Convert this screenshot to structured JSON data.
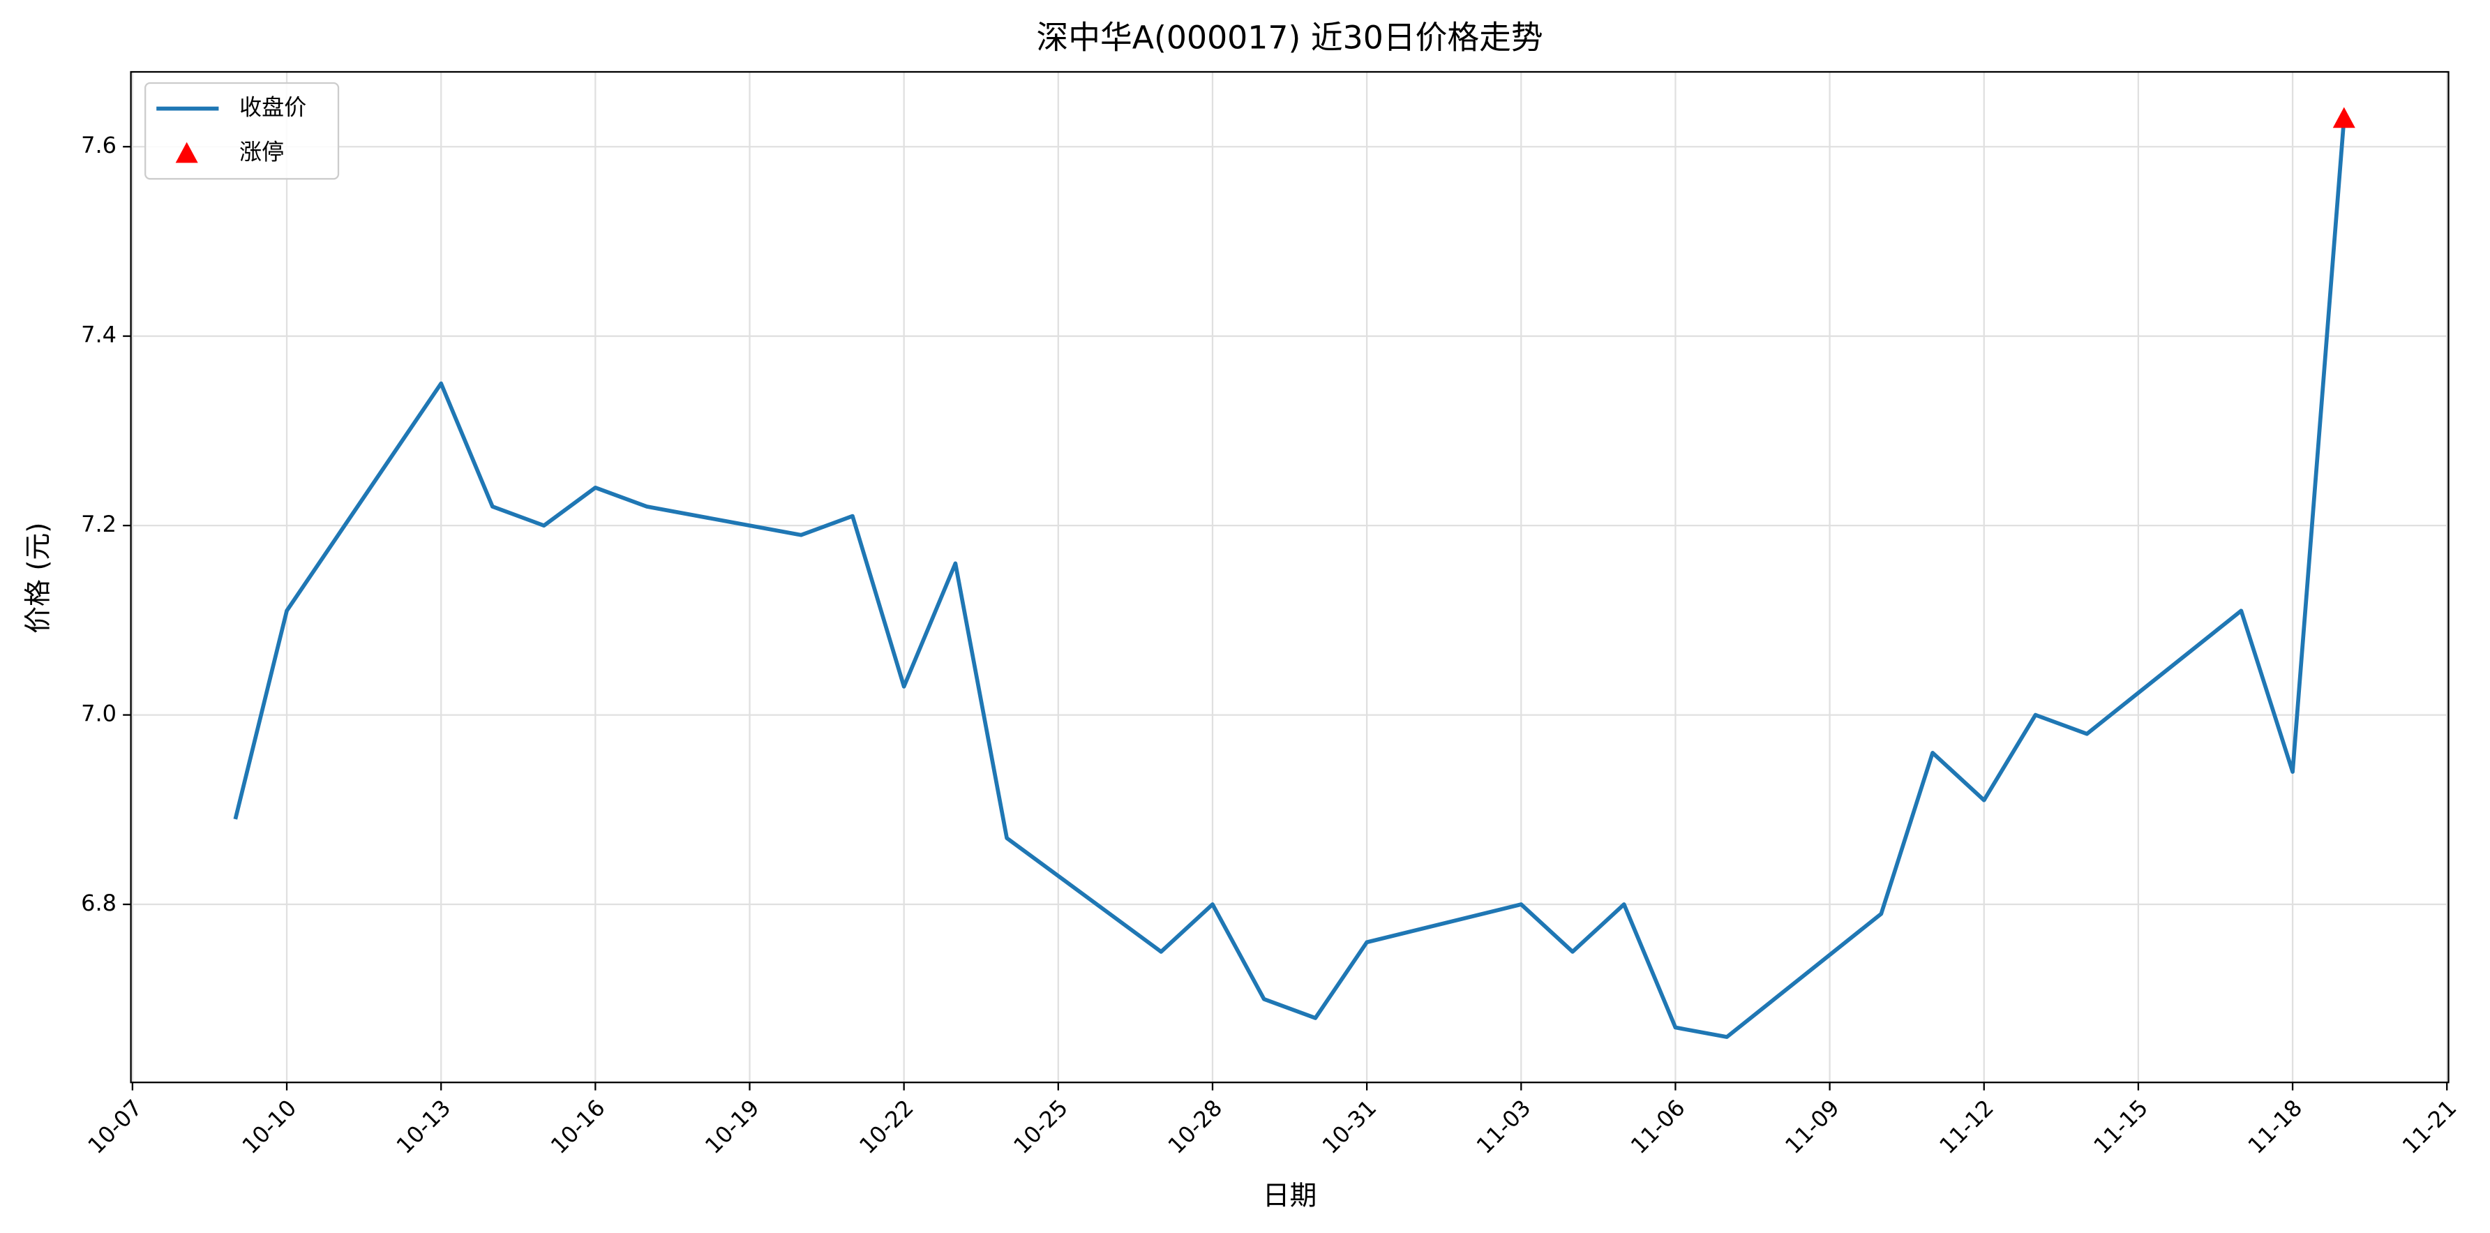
{
  "chart_data": {
    "type": "line",
    "title": "深中华A(000017) 近30日价格走势",
    "x_label": "日期",
    "y_label": "价格 (元)",
    "series": [
      {
        "name": "收盘价",
        "type": "line",
        "color": "#1f77b4",
        "x": [
          "10-09",
          "10-10",
          "10-13",
          "10-14",
          "10-15",
          "10-16",
          "10-17",
          "10-20",
          "10-21",
          "10-22",
          "10-23",
          "10-24",
          "10-27",
          "10-28",
          "10-29",
          "10-30",
          "10-31",
          "11-03",
          "11-04",
          "11-05",
          "11-06",
          "11-07",
          "11-10",
          "11-11",
          "11-12",
          "11-13",
          "11-14",
          "11-17",
          "11-18",
          "11-19"
        ],
        "values": [
          6.89,
          7.11,
          7.35,
          7.22,
          7.2,
          7.24,
          7.22,
          7.19,
          7.21,
          7.03,
          7.16,
          6.87,
          6.75,
          6.8,
          6.7,
          6.68,
          6.76,
          6.8,
          6.75,
          6.8,
          6.67,
          6.66,
          6.79,
          6.96,
          6.91,
          7.0,
          6.98,
          7.11,
          6.94,
          7.63
        ]
      },
      {
        "name": "涨停",
        "type": "scatter",
        "marker": "triangle",
        "color": "#ff0000",
        "x": [
          "11-19"
        ],
        "values": [
          7.63
        ]
      }
    ],
    "xlim": [
      "10-07",
      "11-21"
    ],
    "xticks": [
      "10-07",
      "10-10",
      "10-13",
      "10-16",
      "10-19",
      "10-22",
      "10-25",
      "10-28",
      "10-31",
      "11-03",
      "11-06",
      "11-09",
      "11-12",
      "11-15",
      "11-18",
      "11-21"
    ],
    "ylim": [
      6.612,
      7.679
    ],
    "yticks": [
      6.8,
      {
        "value": 7,
        "label": "7.0"
      },
      7.2,
      7.4,
      7.6
    ],
    "grid": true,
    "legend": "upper left"
  }
}
